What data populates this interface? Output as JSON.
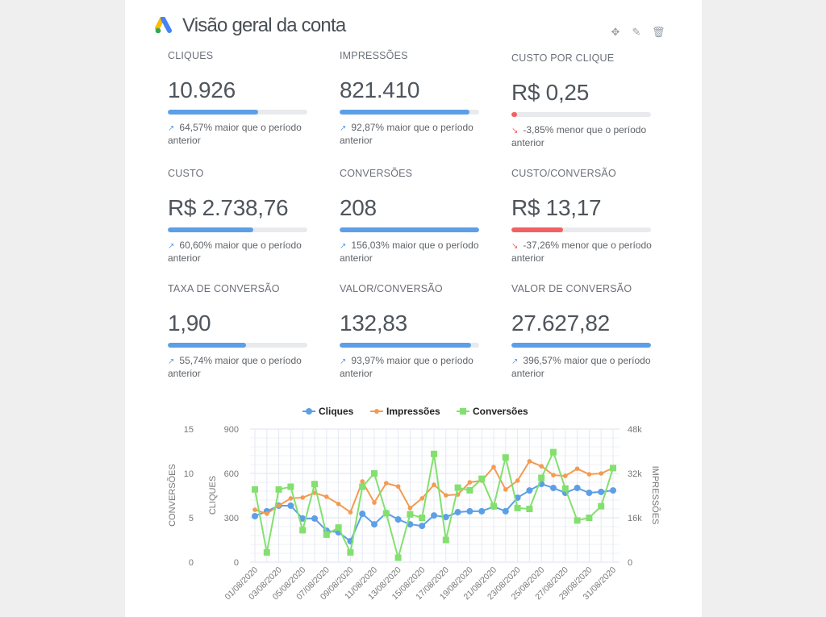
{
  "header": {
    "title": "Visão geral da conta",
    "logo": "google-ads-logo",
    "actions": [
      {
        "icon": "move-icon"
      },
      {
        "icon": "edit-pencil-icon"
      },
      {
        "icon": "trash-icon"
      }
    ]
  },
  "colors": {
    "blue": "#5d9fe6",
    "orange": "#f29b52",
    "green": "#83e06f",
    "red": "#f06262"
  },
  "kpis": [
    {
      "label": "CLIQUES",
      "value": "10.926",
      "progress": 0.65,
      "trend": "up",
      "change": "64,57% maior que o período anterior"
    },
    {
      "label": "IMPRESSÕES",
      "value": "821.410",
      "progress": 0.93,
      "trend": "up",
      "change": "92,87% maior que o período anterior"
    },
    {
      "label": "CUSTO POR CLIQUE",
      "value": "R$ 0,25",
      "progress": 0.04,
      "trend": "down",
      "change": "-3,85% menor que o período anterior"
    },
    {
      "label": "CUSTO",
      "value": "R$ 2.738,76",
      "progress": 0.61,
      "trend": "up",
      "change": "60,60% maior que o período anterior"
    },
    {
      "label": "CONVERSÕES",
      "value": "208",
      "progress": 1.0,
      "trend": "up",
      "change": "156,03% maior que o período anterior"
    },
    {
      "label": "CUSTO/CONVERSÃO",
      "value": "R$ 13,17",
      "progress": 0.37,
      "trend": "down",
      "change": "-37,26% menor que o período anterior"
    },
    {
      "label": "TAXA DE CONVERSÃO",
      "value": "1,90",
      "progress": 0.56,
      "trend": "up",
      "change": "55,74% maior que o período anterior"
    },
    {
      "label": "VALOR/CONVERSÃO",
      "value": "132,83",
      "progress": 0.94,
      "trend": "up",
      "change": "93,97% maior que o período anterior"
    },
    {
      "label": "VALOR DE CONVERSÃO",
      "value": "27.627,82",
      "progress": 1.0,
      "trend": "up",
      "change": "396,57% maior que o período anterior"
    }
  ],
  "chart_data": {
    "type": "line",
    "legend_position": "top",
    "grid": true,
    "x": [
      "01/08/2020",
      "02/08/2020",
      "03/08/2020",
      "04/08/2020",
      "05/08/2020",
      "06/08/2020",
      "07/08/2020",
      "08/08/2020",
      "09/08/2020",
      "10/08/2020",
      "11/08/2020",
      "12/08/2020",
      "13/08/2020",
      "14/08/2020",
      "15/08/2020",
      "16/08/2020",
      "17/08/2020",
      "18/08/2020",
      "19/08/2020",
      "20/08/2020",
      "21/08/2020",
      "22/08/2020",
      "23/08/2020",
      "24/08/2020",
      "25/08/2020",
      "26/08/2020",
      "27/08/2020",
      "28/08/2020",
      "29/08/2020",
      "30/08/2020",
      "31/08/2020"
    ],
    "x_tick_labels": [
      "01/08/2020",
      "03/08/2020",
      "05/08/2020",
      "07/08/2020",
      "09/08/2020",
      "11/08/2020",
      "13/08/2020",
      "15/08/2020",
      "17/08/2020",
      "19/08/2020",
      "21/08/2020",
      "23/08/2020",
      "25/08/2020",
      "27/08/2020",
      "29/08/2020",
      "31/08/2020"
    ],
    "axes": {
      "conversions": {
        "label": "CONVERSÕES",
        "range": [
          0,
          15
        ],
        "ticks": [
          "0",
          "5",
          "10",
          "15"
        ]
      },
      "clicks": {
        "label": "CLIQUES",
        "range": [
          0,
          900
        ],
        "ticks": [
          "0",
          "300",
          "600",
          "900"
        ]
      },
      "impressions": {
        "label": "IMPRESSÕES",
        "range": [
          0,
          48000
        ],
        "ticks": [
          "0",
          "16k",
          "32k",
          "48k"
        ]
      }
    },
    "series": [
      {
        "name": "Cliques",
        "axis": "clicks",
        "marker": "circle",
        "color": "#5d9fe6",
        "values": [
          311,
          344,
          382,
          382,
          295,
          295,
          213,
          202,
          142,
          327,
          256,
          333,
          289,
          256,
          245,
          316,
          305,
          338,
          344,
          344,
          376,
          344,
          436,
          485,
          529,
          502,
          469,
          502,
          469,
          475,
          485
        ]
      },
      {
        "name": "Impressões",
        "axis": "impressions",
        "marker": "star",
        "color": "#f29b52",
        "values": [
          18900,
          17500,
          20400,
          23000,
          23300,
          25000,
          23600,
          21000,
          18000,
          29100,
          21500,
          28500,
          27300,
          19500,
          23000,
          27900,
          24100,
          24400,
          28800,
          29400,
          34300,
          26200,
          29400,
          36400,
          34600,
          31400,
          31100,
          33700,
          31700,
          32000,
          34000
        ]
      },
      {
        "name": "Conversões",
        "axis": "conversions",
        "marker": "square",
        "color": "#83e06f",
        "values": [
          8.2,
          1.1,
          8.2,
          8.5,
          3.6,
          8.8,
          3.1,
          3.9,
          1.1,
          8.5,
          10.0,
          5.5,
          0.5,
          5.4,
          5.0,
          12.2,
          2.5,
          8.4,
          8.1,
          9.4,
          6.3,
          11.8,
          6.1,
          6.0,
          9.5,
          12.4,
          8.3,
          4.7,
          5.0,
          6.3,
          10.6
        ]
      }
    ]
  }
}
